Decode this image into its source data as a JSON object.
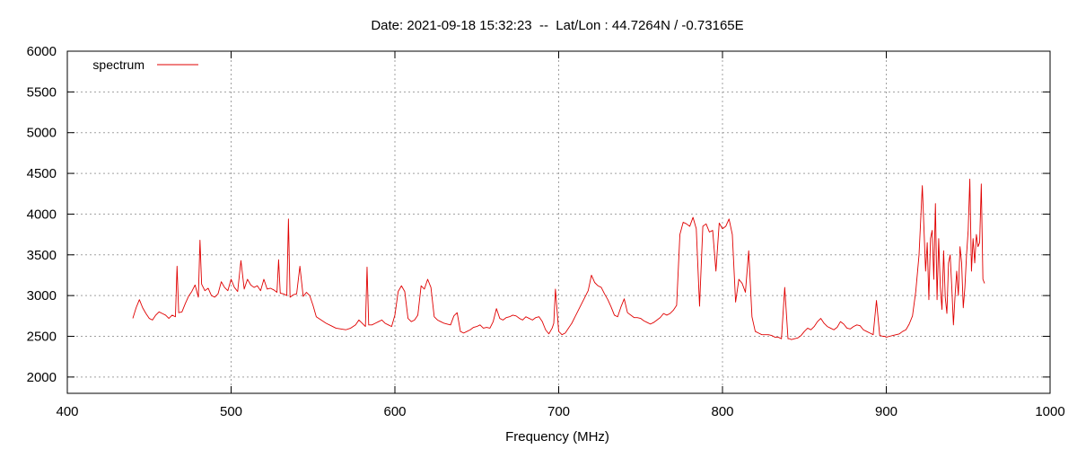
{
  "chart_data": {
    "type": "line",
    "title": "Date: 2021-09-18 15:32:23  --  Lat/Lon : 44.7264N / -0.73165E",
    "xlabel": "Frequency (MHz)",
    "ylabel": "",
    "xlim": [
      400,
      1000
    ],
    "ylim": [
      1800,
      6000
    ],
    "xticks": [
      400,
      500,
      600,
      700,
      800,
      900,
      1000
    ],
    "yticks": [
      2000,
      2500,
      3000,
      3500,
      4000,
      4500,
      5000,
      5500,
      6000
    ],
    "grid": true,
    "legend": "top-left",
    "colors": {
      "series": "#e00000",
      "grid": "#a0a0a0",
      "axis": "#000000"
    },
    "series": [
      {
        "name": "spectrum",
        "x": [
          440,
          442,
          444,
          446,
          448,
          450,
          452,
          454,
          456,
          458,
          460,
          462,
          464,
          466,
          467,
          468,
          470,
          472,
          474,
          476,
          478,
          480,
          481,
          482,
          484,
          486,
          488,
          490,
          492,
          494,
          496,
          498,
          500,
          502,
          504,
          506,
          508,
          510,
          512,
          514,
          516,
          518,
          520,
          522,
          524,
          526,
          528,
          529,
          530,
          532,
          534,
          535,
          536,
          538,
          540,
          542,
          544,
          546,
          548,
          550,
          552,
          555,
          558,
          561,
          564,
          567,
          570,
          573,
          576,
          578,
          580,
          582,
          583,
          584,
          586,
          588,
          590,
          592,
          594,
          596,
          598,
          600,
          602,
          604,
          606,
          608,
          610,
          612,
          614,
          616,
          618,
          620,
          622,
          624,
          626,
          628,
          630,
          632,
          634,
          636,
          638,
          640,
          642,
          644,
          646,
          648,
          650,
          652,
          654,
          656,
          658,
          660,
          662,
          664,
          666,
          668,
          670,
          672,
          674,
          676,
          678,
          680,
          682,
          684,
          686,
          688,
          690,
          692,
          694,
          696,
          697,
          698,
          700,
          702,
          704,
          706,
          708,
          710,
          712,
          714,
          716,
          718,
          720,
          722,
          724,
          726,
          728,
          730,
          732,
          734,
          736,
          738,
          740,
          742,
          744,
          746,
          748,
          750,
          752,
          754,
          756,
          758,
          760,
          762,
          764,
          766,
          768,
          770,
          772,
          774,
          776,
          778,
          780,
          782,
          784,
          786,
          788,
          790,
          792,
          794,
          796,
          798,
          800,
          802,
          804,
          806,
          808,
          810,
          812,
          814,
          816,
          818,
          820,
          822,
          824,
          826,
          828,
          830,
          832,
          834,
          836,
          838,
          840,
          841,
          842,
          844,
          846,
          848,
          850,
          852,
          854,
          856,
          858,
          860,
          862,
          864,
          866,
          868,
          870,
          872,
          874,
          876,
          878,
          880,
          882,
          884,
          886,
          888,
          890,
          892,
          894,
          896,
          898,
          899,
          900,
          902,
          904,
          906,
          908,
          910,
          912,
          914,
          916,
          918,
          920,
          922,
          924,
          925,
          926,
          927,
          928,
          929,
          930,
          931,
          932,
          933,
          934,
          935,
          936,
          937,
          938,
          939,
          940,
          941,
          942,
          943,
          944,
          945,
          946,
          947,
          948,
          949,
          950,
          951,
          952,
          953,
          954,
          955,
          956,
          957,
          958,
          959,
          960
        ],
        "values": [
          2720,
          2850,
          2950,
          2850,
          2780,
          2720,
          2700,
          2760,
          2800,
          2780,
          2760,
          2720,
          2760,
          2740,
          3360,
          2790,
          2800,
          2900,
          2990,
          3050,
          3130,
          2980,
          3680,
          3140,
          3060,
          3090,
          3000,
          2980,
          3020,
          3170,
          3100,
          3060,
          3200,
          3100,
          3050,
          3430,
          3080,
          3200,
          3130,
          3100,
          3120,
          3060,
          3200,
          3080,
          3090,
          3070,
          3040,
          3440,
          3030,
          3020,
          3000,
          3940,
          2980,
          3010,
          3020,
          3360,
          2990,
          3040,
          3000,
          2880,
          2740,
          2700,
          2660,
          2630,
          2600,
          2590,
          2580,
          2600,
          2640,
          2700,
          2660,
          2620,
          3350,
          2640,
          2640,
          2660,
          2680,
          2700,
          2660,
          2640,
          2620,
          2760,
          3050,
          3120,
          3050,
          2720,
          2680,
          2700,
          2760,
          3120,
          3080,
          3200,
          3100,
          2740,
          2700,
          2680,
          2660,
          2650,
          2640,
          2750,
          2790,
          2560,
          2540,
          2560,
          2580,
          2610,
          2620,
          2640,
          2600,
          2610,
          2600,
          2680,
          2840,
          2720,
          2700,
          2730,
          2740,
          2760,
          2750,
          2720,
          2700,
          2740,
          2720,
          2700,
          2730,
          2740,
          2680,
          2580,
          2530,
          2600,
          2660,
          3080,
          2560,
          2520,
          2540,
          2600,
          2660,
          2740,
          2820,
          2900,
          2980,
          3060,
          3250,
          3160,
          3120,
          3100,
          3020,
          2950,
          2860,
          2760,
          2740,
          2860,
          2960,
          2790,
          2760,
          2730,
          2730,
          2720,
          2690,
          2670,
          2650,
          2670,
          2700,
          2730,
          2780,
          2760,
          2780,
          2820,
          2880,
          3750,
          3900,
          3880,
          3850,
          3960,
          3820,
          2870,
          3850,
          3880,
          3780,
          3800,
          3300,
          3890,
          3820,
          3850,
          3940,
          3750,
          2920,
          3200,
          3150,
          3040,
          3550,
          2740,
          2560,
          2540,
          2520,
          2520,
          2520,
          2510,
          2490,
          2490,
          2470,
          3100,
          2470,
          2470,
          2460,
          2470,
          2480,
          2510,
          2560,
          2600,
          2580,
          2620,
          2680,
          2720,
          2660,
          2620,
          2600,
          2580,
          2610,
          2680,
          2650,
          2600,
          2590,
          2620,
          2640,
          2630,
          2580,
          2560,
          2540,
          2520,
          2940,
          2510,
          2500,
          2500,
          2490,
          2500,
          2510,
          2520,
          2530,
          2560,
          2580,
          2650,
          2750,
          3050,
          3500,
          4350,
          3300,
          3650,
          2950,
          3700,
          3800,
          3200,
          4130,
          2950,
          3700,
          3100,
          2830,
          3550,
          2980,
          2780,
          3400,
          3500,
          3100,
          2640,
          3000,
          3300,
          3000,
          3600,
          3400,
          2850,
          3100,
          3500,
          3800,
          4430,
          3300,
          3700,
          3400,
          3750,
          3600,
          3650,
          4370,
          3200,
          3150
        ]
      }
    ]
  }
}
